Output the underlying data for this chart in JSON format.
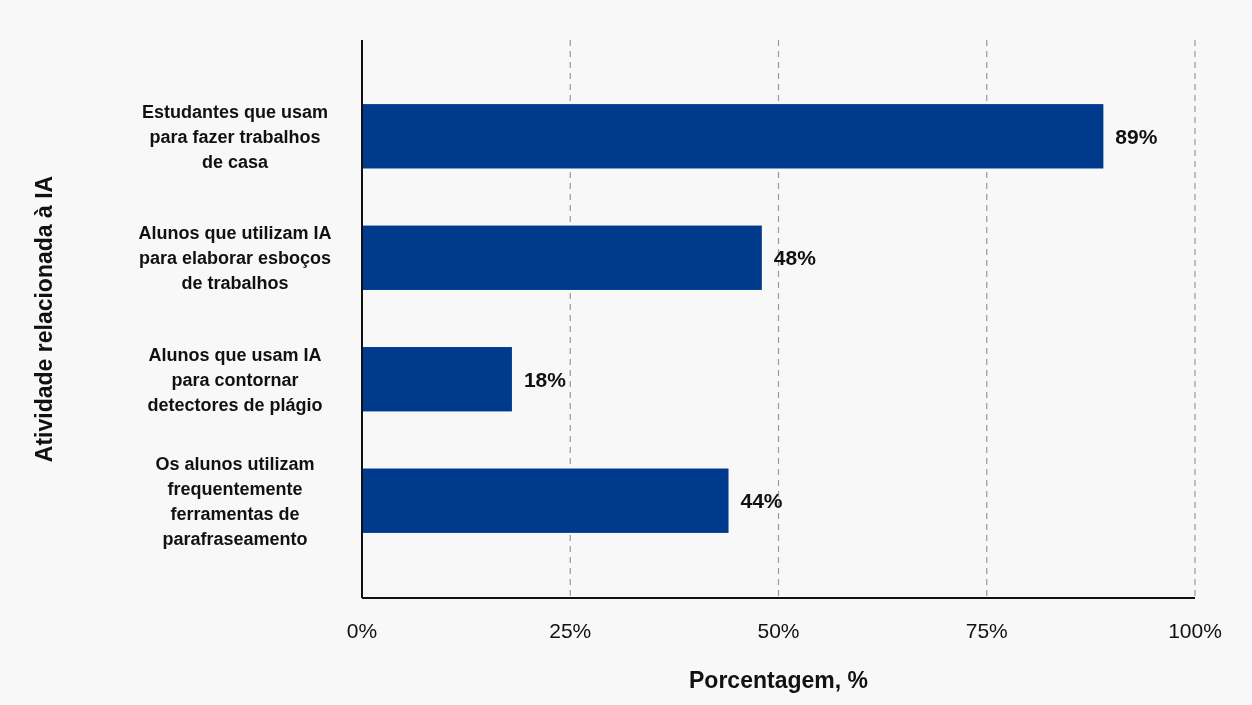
{
  "chart_data": {
    "type": "bar",
    "orientation": "horizontal",
    "xlabel": "Porcentagem, %",
    "ylabel": "Atividade relacionada à IA",
    "categories": [
      "Estudantes que usam para fazer trabalhos de casa",
      "Alunos que utilizam IA para elaborar esboços de trabalhos",
      "Alunos que usam IA para contornar detectores de plágio",
      "Os alunos utilizam frequentemente ferramentas de parafraseamento"
    ],
    "values": [
      89,
      48,
      18,
      44
    ],
    "color": "#003a8c",
    "data_labels": true,
    "value_labels": [
      "89%",
      "48%",
      "18%",
      "44%"
    ],
    "xlim": [
      0,
      100
    ],
    "xticks": [
      {
        "value": 0,
        "label": "0%"
      },
      {
        "value": 25,
        "label": "25%"
      },
      {
        "value": 50,
        "label": "50%"
      },
      {
        "value": 75,
        "label": "75%"
      },
      {
        "value": 100,
        "label": "100%"
      }
    ],
    "grid": "x"
  }
}
